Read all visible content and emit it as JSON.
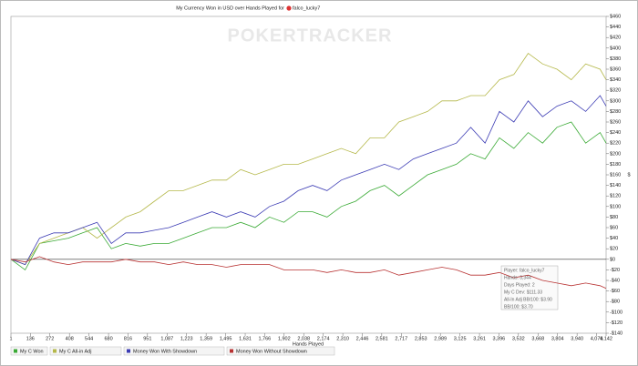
{
  "chart_data": {
    "type": "line",
    "title": "My Currency Won in USD over Hands Played for",
    "player": "falco_lucky7",
    "watermark": "POKERTRACKER",
    "x_label": "Hands Played",
    "y_label": "$",
    "grid": false,
    "legend": "bottom-left",
    "tooltip": [
      "Player: falco_lucky7",
      "Hands: 3,344",
      "Days Played: 2",
      "My C Dev: $111.33",
      "All-In Adj BB/100: $3.90",
      "BB/100: $3.70"
    ],
    "xlim": [
      1,
      4142
    ],
    "xticks": [
      1,
      136,
      272,
      408,
      544,
      680,
      816,
      951,
      {
        "value": 1087,
        "label": "1,087"
      },
      {
        "value": 1223,
        "label": "1,223"
      },
      {
        "value": 1359,
        "label": "1,359"
      },
      {
        "value": 1495,
        "label": "1,495"
      },
      {
        "value": 1631,
        "label": "1,631"
      },
      {
        "value": 1766,
        "label": "1,766"
      },
      {
        "value": 1902,
        "label": "1,902"
      },
      {
        "value": 2038,
        "label": "2,038"
      },
      {
        "value": 2174,
        "label": "2,174"
      },
      {
        "value": 2310,
        "label": "2,310"
      },
      {
        "value": 2446,
        "label": "2,446"
      },
      {
        "value": 2581,
        "label": "2,581"
      },
      {
        "value": 2717,
        "label": "2,717"
      },
      {
        "value": 2853,
        "label": "2,853"
      },
      {
        "value": 2989,
        "label": "2,989"
      },
      {
        "value": 3125,
        "label": "3,125"
      },
      {
        "value": 3261,
        "label": "3,261"
      },
      {
        "value": 3396,
        "label": "3,396"
      },
      {
        "value": 3532,
        "label": "3,532"
      },
      {
        "value": 3668,
        "label": "3,668"
      },
      {
        "value": 3804,
        "label": "3,804"
      },
      {
        "value": 3940,
        "label": "3,940"
      },
      {
        "value": 4076,
        "label": "4,076"
      },
      {
        "value": 4142,
        "label": "4,142"
      }
    ],
    "ylim": [
      -140,
      460
    ],
    "yticks": [
      {
        "value": 460,
        "label": "$460"
      },
      {
        "value": 440,
        "label": "$440"
      },
      {
        "value": 420,
        "label": "$420"
      },
      {
        "value": 400,
        "label": "$400"
      },
      {
        "value": 380,
        "label": "$380"
      },
      {
        "value": 360,
        "label": "$360"
      },
      {
        "value": 340,
        "label": "$340"
      },
      {
        "value": 320,
        "label": "$320"
      },
      {
        "value": 300,
        "label": "$300"
      },
      {
        "value": 280,
        "label": "$280"
      },
      {
        "value": 260,
        "label": "$260"
      },
      {
        "value": 240,
        "label": "$240"
      },
      {
        "value": 220,
        "label": "$220"
      },
      {
        "value": 200,
        "label": "$200"
      },
      {
        "value": 180,
        "label": "$180"
      },
      {
        "value": 160,
        "label": "$160"
      },
      {
        "value": 140,
        "label": "$140"
      },
      {
        "value": 120,
        "label": "$120"
      },
      {
        "value": 100,
        "label": "$100"
      },
      {
        "value": 80,
        "label": "$80"
      },
      {
        "value": 60,
        "label": "$60"
      },
      {
        "value": 40,
        "label": "$40"
      },
      {
        "value": 20,
        "label": "$20"
      },
      {
        "value": 0,
        "label": "$0"
      },
      {
        "value": -20,
        "label": "-$20"
      },
      {
        "value": -40,
        "label": "-$40"
      },
      {
        "value": -60,
        "label": "-$60"
      },
      {
        "value": -80,
        "label": "-$80"
      },
      {
        "value": -100,
        "label": "-$100"
      },
      {
        "value": -120,
        "label": "-$120"
      },
      {
        "value": -140,
        "label": "-$140"
      }
    ],
    "x": [
      1,
      100,
      200,
      300,
      400,
      500,
      600,
      700,
      800,
      900,
      1000,
      1100,
      1200,
      1300,
      1400,
      1500,
      1600,
      1700,
      1800,
      1900,
      2000,
      2100,
      2200,
      2300,
      2400,
      2500,
      2600,
      2700,
      2800,
      2900,
      3000,
      3100,
      3200,
      3300,
      3400,
      3500,
      3600,
      3700,
      3800,
      3900,
      4000,
      4100,
      4142
    ],
    "series": [
      {
        "name": "My C Won",
        "color": "#3aaa35",
        "values": [
          0,
          -20,
          30,
          35,
          40,
          50,
          60,
          20,
          30,
          25,
          30,
          30,
          40,
          50,
          60,
          60,
          70,
          60,
          80,
          70,
          90,
          90,
          80,
          100,
          110,
          130,
          140,
          120,
          140,
          160,
          170,
          180,
          200,
          190,
          230,
          210,
          240,
          220,
          250,
          260,
          220,
          240,
          220
        ]
      },
      {
        "name": "My C All-in Adj",
        "color": "#b5b84a",
        "values": [
          0,
          -10,
          30,
          40,
          50,
          60,
          40,
          60,
          80,
          90,
          110,
          130,
          130,
          140,
          150,
          150,
          170,
          160,
          170,
          180,
          180,
          190,
          200,
          210,
          200,
          230,
          230,
          260,
          270,
          280,
          300,
          300,
          310,
          310,
          340,
          350,
          390,
          370,
          360,
          340,
          370,
          360,
          340
        ]
      },
      {
        "name": "Money Won With Showdown",
        "color": "#3c3cb4",
        "values": [
          0,
          -10,
          40,
          50,
          50,
          60,
          70,
          30,
          50,
          50,
          55,
          60,
          70,
          80,
          90,
          80,
          90,
          80,
          100,
          110,
          130,
          140,
          130,
          150,
          160,
          170,
          180,
          170,
          190,
          200,
          210,
          220,
          250,
          220,
          280,
          260,
          300,
          270,
          290,
          300,
          280,
          310,
          290
        ]
      },
      {
        "name": "Money Won Without Showdown",
        "color": "#b83232",
        "values": [
          0,
          -5,
          5,
          -5,
          -10,
          -5,
          -5,
          -5,
          0,
          -5,
          -5,
          -10,
          -5,
          -10,
          -10,
          -15,
          -10,
          -10,
          -10,
          -20,
          -20,
          -20,
          -25,
          -20,
          -25,
          -25,
          -20,
          -30,
          -25,
          -20,
          -15,
          -20,
          -30,
          -30,
          -25,
          -35,
          -30,
          -40,
          -45,
          -50,
          -45,
          -50,
          -55
        ]
      }
    ]
  }
}
